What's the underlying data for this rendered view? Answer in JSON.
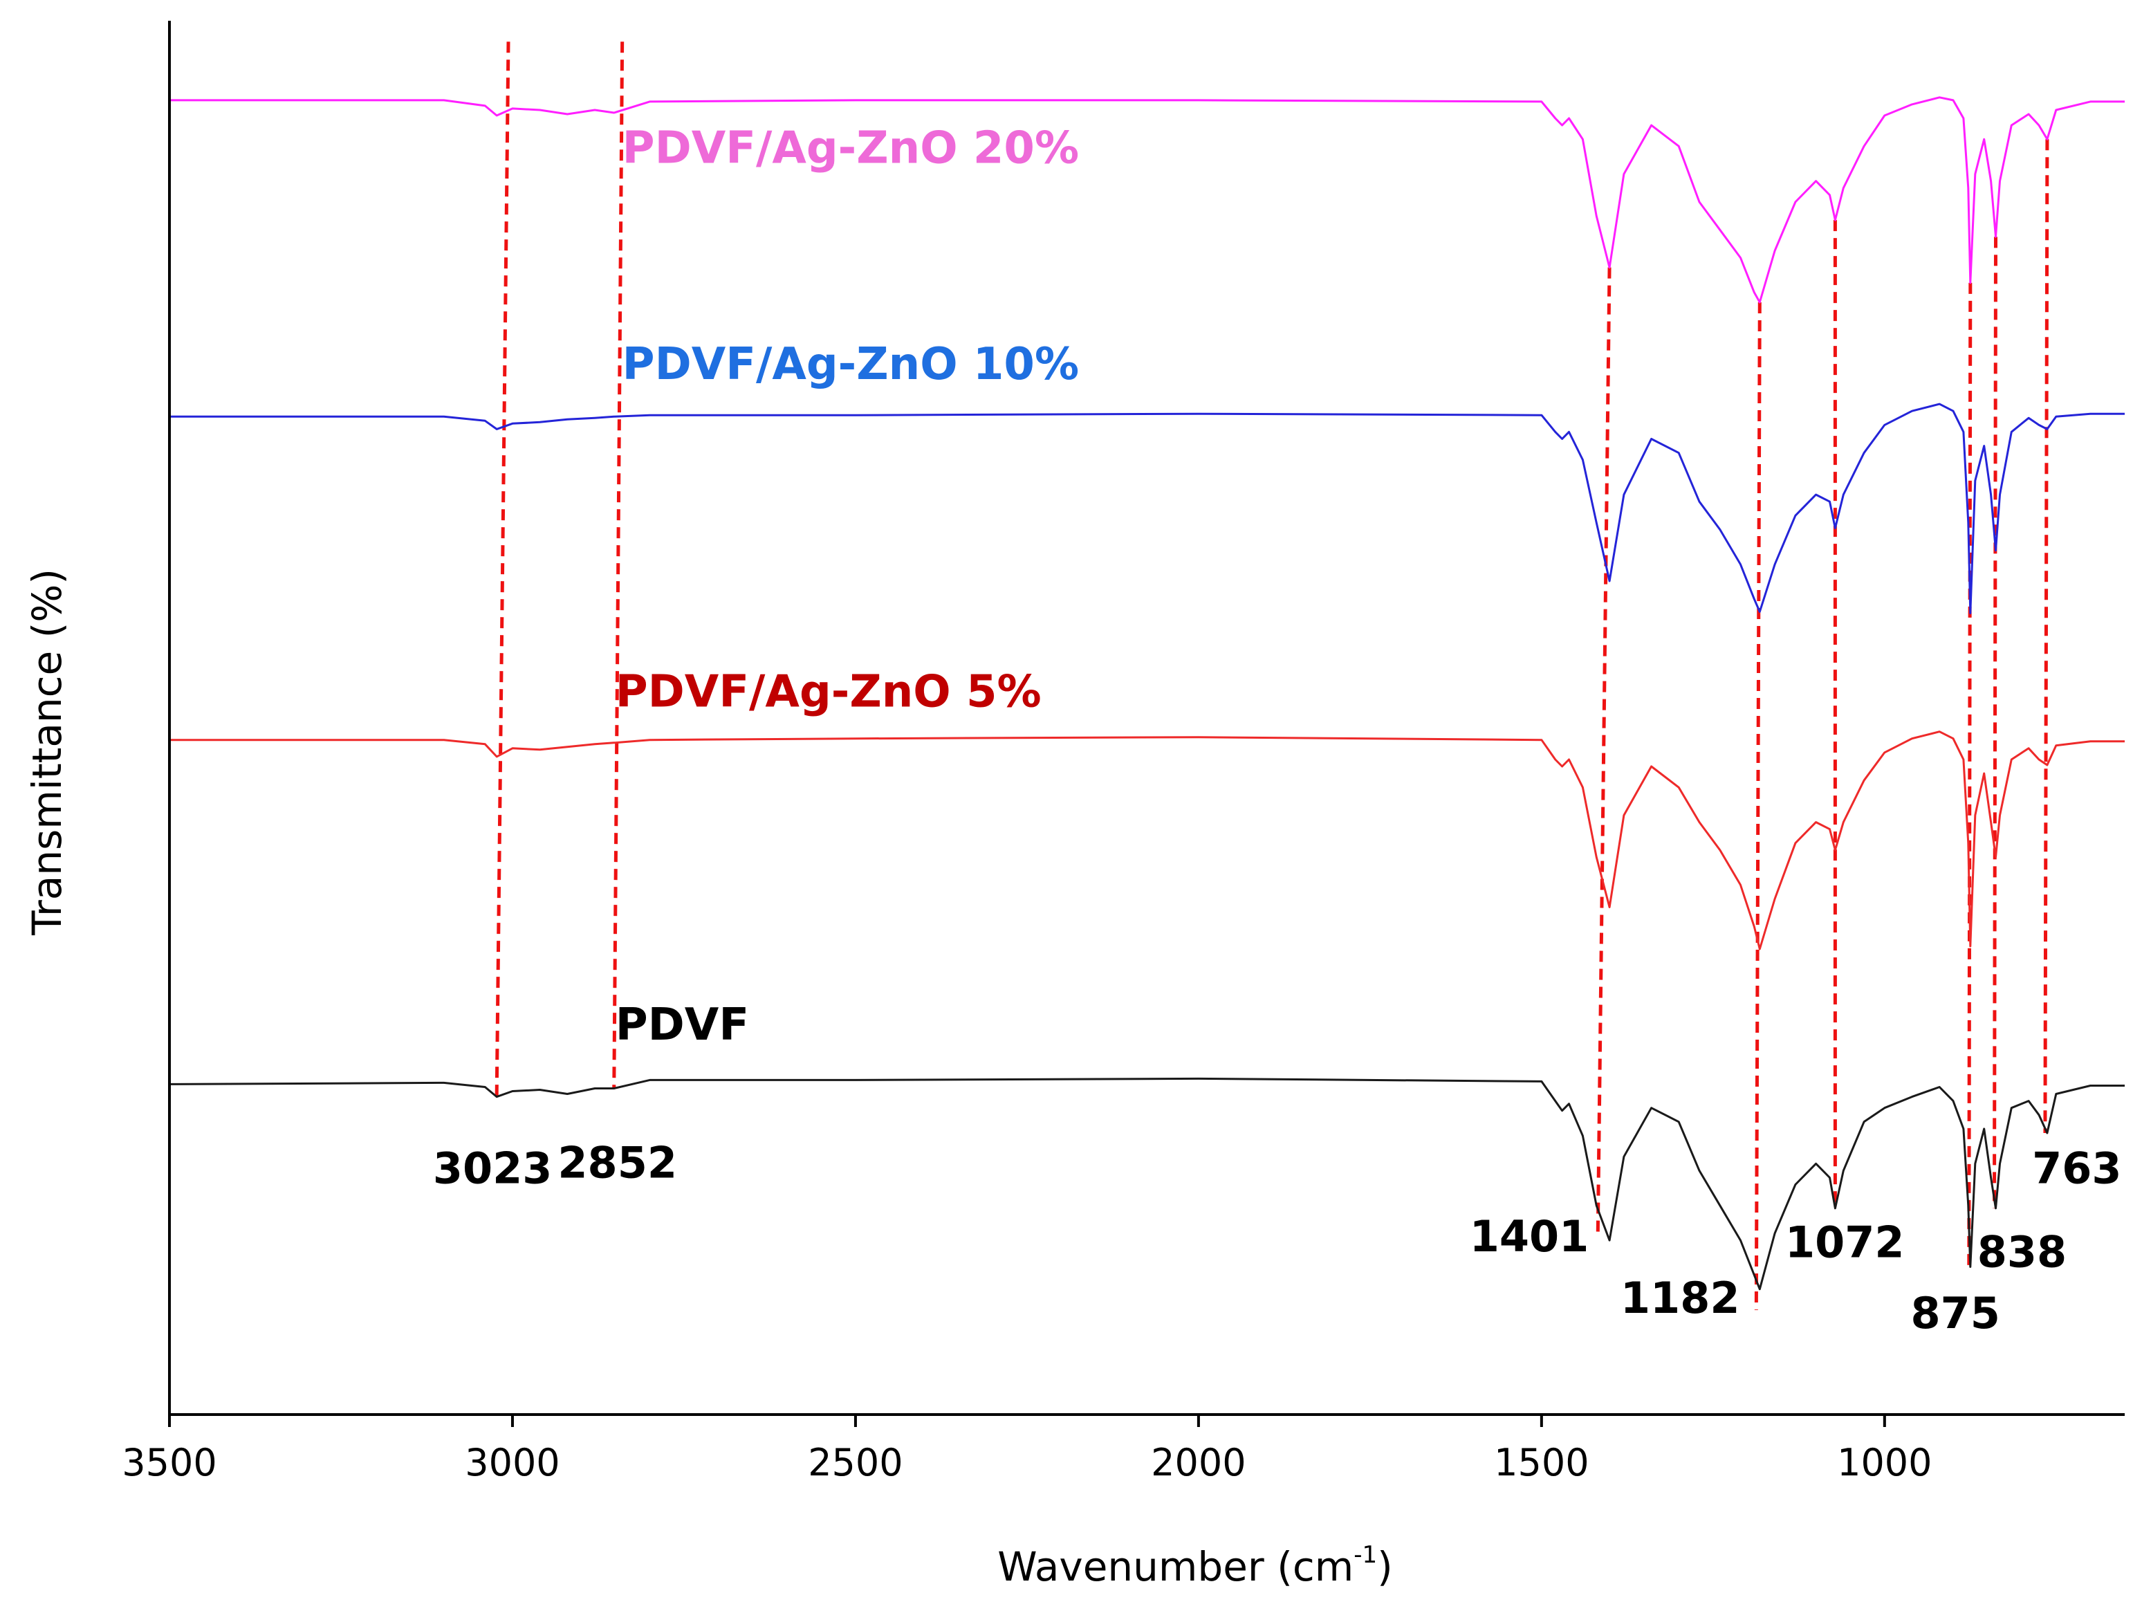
{
  "chart_data": {
    "type": "line",
    "title": "",
    "xlabel": "Wavenumber (cm",
    "xlabel_sup": "-1",
    "xlabel_close": ")",
    "ylabel": "Transmittance (%)",
    "xlim": [
      3500,
      650
    ],
    "x_reversed": true,
    "ylim": [
      0,
      100
    ],
    "x_ticks": [
      3500,
      3000,
      2500,
      2000,
      1500,
      1000
    ],
    "x_tick_labels": [
      "3500",
      "3000",
      "2500",
      "2000",
      "1500",
      "1000"
    ],
    "y_ticks_shown": false,
    "colors": {
      "pdvf": "#1a1a1a",
      "pdvf_5": "#ee2a2a",
      "pdvf_10": "#2424d8",
      "pdvf_20": "#ff1fff",
      "label_pdvf": "#000000",
      "label_5": "#c00000",
      "label_10": "#1f6fe0",
      "label_20": "#ee6ad8",
      "guide": "#ee1111"
    },
    "series": [
      {
        "key": "pdvf_20",
        "name": "PDVF/Ag-ZnO 20%",
        "x": [
          3500,
          3100,
          3040,
          3023,
          3000,
          2960,
          2920,
          2880,
          2852,
          2800,
          2500,
          2000,
          1500,
          1480,
          1470,
          1460,
          1440,
          1420,
          1401,
          1380,
          1340,
          1300,
          1270,
          1240,
          1210,
          1190,
          1182,
          1160,
          1130,
          1100,
          1080,
          1072,
          1060,
          1030,
          1000,
          960,
          920,
          900,
          885,
          878,
          875,
          868,
          855,
          845,
          838,
          832,
          815,
          790,
          775,
          763,
          750,
          700,
          650
        ],
        "y": [
          94.3,
          94.3,
          93.9,
          93.2,
          93.7,
          93.6,
          93.3,
          93.6,
          93.4,
          94.2,
          94.3,
          94.3,
          94.2,
          93.0,
          92.5,
          93.0,
          91.5,
          86.0,
          82.3,
          89.0,
          92.5,
          91.0,
          87.0,
          85.0,
          83.0,
          80.5,
          79.8,
          83.5,
          87.0,
          88.5,
          87.5,
          85.7,
          88.0,
          91.0,
          93.2,
          94.0,
          94.5,
          94.3,
          93.0,
          88.0,
          81.2,
          89.0,
          91.5,
          88.5,
          84.5,
          88.5,
          92.5,
          93.3,
          92.5,
          91.5,
          93.6,
          94.2,
          94.2
        ]
      },
      {
        "key": "pdvf_10",
        "name": "PDVF/Ag-ZnO 10%",
        "x": [
          3500,
          3100,
          3040,
          3023,
          3000,
          2960,
          2920,
          2880,
          2852,
          2800,
          2500,
          2000,
          1500,
          1480,
          1470,
          1460,
          1440,
          1420,
          1401,
          1380,
          1340,
          1300,
          1270,
          1240,
          1210,
          1190,
          1182,
          1160,
          1130,
          1100,
          1080,
          1072,
          1060,
          1030,
          1000,
          960,
          920,
          900,
          885,
          878,
          875,
          868,
          855,
          845,
          838,
          832,
          815,
          790,
          775,
          763,
          750,
          700,
          650
        ],
        "y": [
          71.6,
          71.6,
          71.3,
          70.7,
          71.1,
          71.2,
          71.4,
          71.5,
          71.6,
          71.7,
          71.7,
          71.8,
          71.7,
          70.5,
          70.0,
          70.5,
          68.5,
          64.0,
          59.8,
          66.0,
          70.0,
          69.0,
          65.5,
          63.5,
          61.0,
          58.5,
          57.6,
          61.0,
          64.5,
          66.0,
          65.5,
          63.6,
          66.0,
          69.0,
          71.0,
          72.0,
          72.5,
          72.0,
          70.5,
          64.0,
          57.5,
          67.0,
          69.5,
          66.0,
          62.0,
          66.0,
          70.5,
          71.5,
          71.0,
          70.7,
          71.6,
          71.8,
          71.8
        ]
      },
      {
        "key": "pdvf_5",
        "name": "PDVF/Ag-ZnO 5%",
        "x": [
          3500,
          3100,
          3040,
          3023,
          3000,
          2960,
          2920,
          2880,
          2852,
          2800,
          2500,
          2000,
          1500,
          1480,
          1470,
          1460,
          1440,
          1420,
          1401,
          1380,
          1340,
          1300,
          1270,
          1240,
          1210,
          1190,
          1182,
          1160,
          1130,
          1100,
          1080,
          1072,
          1060,
          1030,
          1000,
          960,
          920,
          900,
          885,
          878,
          875,
          868,
          855,
          845,
          838,
          832,
          815,
          790,
          775,
          763,
          750,
          700,
          650
        ],
        "y": [
          48.4,
          48.4,
          48.1,
          47.2,
          47.8,
          47.7,
          47.9,
          48.1,
          48.2,
          48.4,
          48.5,
          48.6,
          48.4,
          47.0,
          46.5,
          47.0,
          45.0,
          40.0,
          36.4,
          43.0,
          46.5,
          45.0,
          42.5,
          40.5,
          38.0,
          35.0,
          33.4,
          37.0,
          41.0,
          42.5,
          42.0,
          40.5,
          42.5,
          45.5,
          47.5,
          48.5,
          49.0,
          48.5,
          47.0,
          41.0,
          33.6,
          43.0,
          46.0,
          42.5,
          40.0,
          43.0,
          47.0,
          47.8,
          47.0,
          46.6,
          48.0,
          48.3,
          48.3
        ]
      },
      {
        "key": "pdvf",
        "name": "PDVF",
        "x": [
          3500,
          3100,
          3040,
          3023,
          3000,
          2960,
          2920,
          2880,
          2852,
          2800,
          2500,
          2000,
          1500,
          1480,
          1470,
          1460,
          1440,
          1420,
          1401,
          1380,
          1340,
          1300,
          1270,
          1240,
          1210,
          1190,
          1182,
          1160,
          1130,
          1100,
          1080,
          1072,
          1060,
          1030,
          1000,
          960,
          920,
          900,
          885,
          878,
          875,
          868,
          855,
          845,
          838,
          832,
          815,
          790,
          775,
          763,
          750,
          700,
          650
        ],
        "y": [
          23.7,
          23.8,
          23.5,
          22.8,
          23.2,
          23.3,
          23.0,
          23.4,
          23.4,
          24.0,
          24.0,
          24.1,
          23.9,
          22.5,
          21.8,
          22.3,
          20.0,
          15.0,
          12.5,
          18.5,
          22.0,
          21.0,
          17.5,
          15.0,
          12.5,
          10.0,
          9.0,
          13.0,
          16.5,
          18.0,
          17.0,
          14.8,
          17.5,
          21.0,
          22.0,
          22.8,
          23.5,
          22.5,
          20.5,
          15.0,
          10.6,
          18.0,
          20.5,
          17.0,
          14.8,
          18.0,
          22.0,
          22.5,
          21.5,
          20.2,
          23.0,
          23.6,
          23.6
        ]
      }
    ],
    "series_labels": [
      {
        "key": "pdvf_20",
        "text": "PDVF/Ag-ZnO 20%",
        "x": 2840,
        "y": 89.8
      },
      {
        "key": "pdvf_10",
        "text": "PDVF/Ag-ZnO 10%",
        "x": 2840,
        "y": 74.3
      },
      {
        "key": "pdvf_5",
        "text": "PDVF/Ag-ZnO 5%",
        "x": 2850,
        "y": 50.8
      },
      {
        "key": "pdvf",
        "text": "PDVF",
        "x": 2850,
        "y": 26.9
      }
    ],
    "guides": [
      {
        "top_x": 3006,
        "bottom_x": 3023,
        "top_y": 98.5,
        "bottom_y": 22.8
      },
      {
        "top_x": 2840,
        "bottom_x": 2852,
        "top_y": 98.5,
        "bottom_y": 23.4
      },
      {
        "top_x": 1401,
        "bottom_x": 1418,
        "top_y": 82.3,
        "bottom_y": 12.7
      },
      {
        "top_x": 1182,
        "bottom_x": 1187,
        "top_y": 79.8,
        "bottom_y": 7.5
      },
      {
        "top_x": 1072,
        "bottom_x": 1072,
        "top_y": 85.7,
        "bottom_y": 14.8
      },
      {
        "top_x": 875,
        "bottom_x": 877,
        "top_y": 81.2,
        "bottom_y": 10.6
      },
      {
        "top_x": 838,
        "bottom_x": 840,
        "top_y": 84.5,
        "bottom_y": 14.8
      },
      {
        "top_x": 763,
        "bottom_x": 766,
        "top_y": 91.5,
        "bottom_y": 20.2
      }
    ],
    "peak_labels": [
      {
        "text": "3023",
        "x": 3116,
        "y": 16.6
      },
      {
        "text": "2852",
        "x": 2934,
        "y": 17.0
      },
      {
        "text": "1401",
        "x": 1605,
        "y": 11.7
      },
      {
        "text": "1182",
        "x": 1385,
        "y": 7.3
      },
      {
        "text": "1072",
        "x": 1145,
        "y": 11.3
      },
      {
        "text": "875",
        "x": 962,
        "y": 6.2
      },
      {
        "text": "838",
        "x": 865,
        "y": 10.6
      },
      {
        "text": "763",
        "x": 785,
        "y": 16.6
      }
    ]
  }
}
